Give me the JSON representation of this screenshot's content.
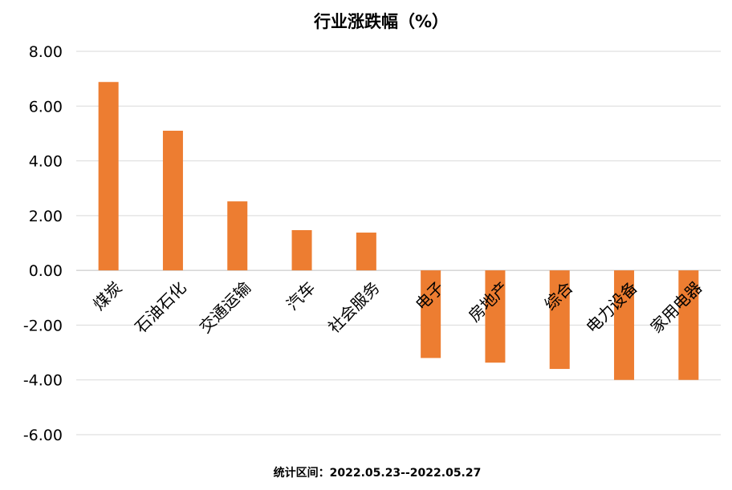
{
  "chart_data": {
    "type": "bar",
    "title": "行业涨跌幅（%）",
    "categories": [
      "煤炭",
      "石油石化",
      "交通运输",
      "汽车",
      "社会服务",
      "电子",
      "房地产",
      "综合",
      "电力设备",
      "家用电器"
    ],
    "values": [
      6.88,
      5.1,
      2.52,
      1.47,
      1.38,
      -3.2,
      -3.37,
      -3.6,
      -4.0,
      -4.0
    ],
    "ylim": [
      -6,
      8
    ],
    "yticks": [
      "8.00",
      "6.00",
      "4.00",
      "2.00",
      "0.00",
      "-2.00",
      "-4.00",
      "-6.00"
    ],
    "xlabel": "",
    "ylabel": "",
    "grid": true,
    "bar_color": "#ED7D31"
  },
  "footnote": "统计区间：2022.05.23--2022.05.27"
}
